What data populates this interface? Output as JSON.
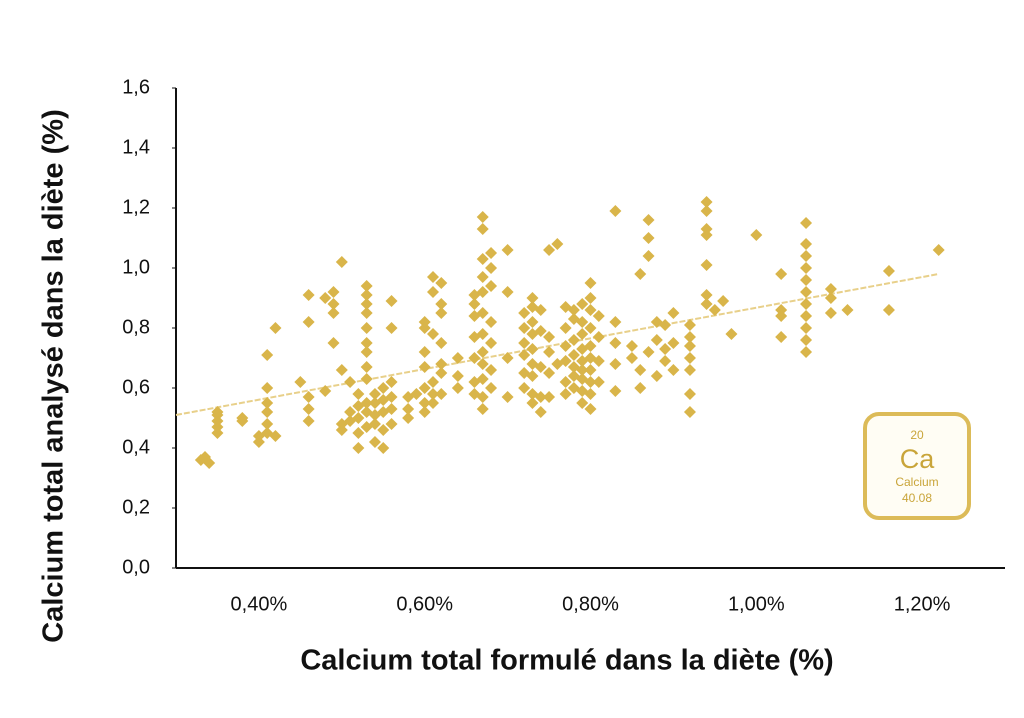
{
  "chart_data": {
    "type": "scatter",
    "x_label": "Calcium total formulé dans la diète (%)",
    "y_label": "Calcium total analysé dans la diète (%)",
    "color": "#d9b54a",
    "xlim": [
      0.3,
      1.3
    ],
    "ylim": [
      0,
      1.6
    ],
    "xticks": [
      {
        "value": 0.4,
        "label": "0,40%"
      },
      {
        "value": 0.6,
        "label": "0,60%"
      },
      {
        "value": 0.8,
        "label": "0,80%"
      },
      {
        "value": 1.0,
        "label": "1,00%"
      },
      {
        "value": 1.2,
        "label": "1,20%"
      }
    ],
    "yticks": [
      {
        "value": 0,
        "label": "0,0"
      },
      {
        "value": 0.2,
        "label": "0,2"
      },
      {
        "value": 0.4,
        "label": "0,4"
      },
      {
        "value": 0.6,
        "label": "0,6"
      },
      {
        "value": 0.8,
        "label": "0,8"
      },
      {
        "value": 1.0,
        "label": "1,0"
      },
      {
        "value": 1.2,
        "label": "1,2"
      },
      {
        "value": 1.4,
        "label": "1,4"
      },
      {
        "value": 1.6,
        "label": "1,6"
      }
    ],
    "trendline": {
      "color": "#e8d08a",
      "x": [
        0.3,
        1.22
      ],
      "y": [
        0.51,
        0.98
      ]
    },
    "x": [
      0.33,
      0.34,
      0.335,
      0.35,
      0.35,
      0.35,
      0.35,
      0.35,
      0.38,
      0.38,
      0.4,
      0.4,
      0.41,
      0.41,
      0.41,
      0.41,
      0.41,
      0.41,
      0.42,
      0.42,
      0.45,
      0.46,
      0.46,
      0.46,
      0.46,
      0.46,
      0.48,
      0.48,
      0.49,
      0.49,
      0.49,
      0.49,
      0.5,
      0.5,
      0.5,
      0.5,
      0.51,
      0.51,
      0.51,
      0.52,
      0.52,
      0.52,
      0.52,
      0.52,
      0.53,
      0.53,
      0.53,
      0.53,
      0.53,
      0.53,
      0.53,
      0.53,
      0.53,
      0.53,
      0.53,
      0.53,
      0.54,
      0.54,
      0.54,
      0.54,
      0.54,
      0.55,
      0.55,
      0.55,
      0.55,
      0.55,
      0.56,
      0.56,
      0.56,
      0.56,
      0.56,
      0.56,
      0.58,
      0.58,
      0.58,
      0.59,
      0.6,
      0.6,
      0.6,
      0.6,
      0.6,
      0.6,
      0.6,
      0.61,
      0.61,
      0.61,
      0.61,
      0.61,
      0.61,
      0.62,
      0.62,
      0.62,
      0.62,
      0.62,
      0.62,
      0.62,
      0.64,
      0.64,
      0.64,
      0.66,
      0.66,
      0.66,
      0.66,
      0.66,
      0.66,
      0.66,
      0.67,
      0.67,
      0.67,
      0.67,
      0.67,
      0.67,
      0.67,
      0.67,
      0.67,
      0.67,
      0.67,
      0.67,
      0.68,
      0.68,
      0.68,
      0.68,
      0.68,
      0.68,
      0.68,
      0.7,
      0.7,
      0.7,
      0.7,
      0.72,
      0.72,
      0.72,
      0.72,
      0.72,
      0.72,
      0.73,
      0.73,
      0.73,
      0.73,
      0.73,
      0.73,
      0.73,
      0.73,
      0.73,
      0.74,
      0.74,
      0.74,
      0.74,
      0.74,
      0.75,
      0.75,
      0.75,
      0.75,
      0.75,
      0.76,
      0.76,
      0.77,
      0.77,
      0.77,
      0.77,
      0.77,
      0.77,
      0.78,
      0.78,
      0.78,
      0.78,
      0.78,
      0.78,
      0.78,
      0.79,
      0.79,
      0.79,
      0.79,
      0.79,
      0.79,
      0.79,
      0.79,
      0.79,
      0.8,
      0.8,
      0.8,
      0.8,
      0.8,
      0.8,
      0.8,
      0.8,
      0.8,
      0.8,
      0.81,
      0.81,
      0.81,
      0.81,
      0.83,
      0.83,
      0.83,
      0.83,
      0.83,
      0.85,
      0.85,
      0.86,
      0.86,
      0.86,
      0.87,
      0.87,
      0.87,
      0.87,
      0.88,
      0.88,
      0.88,
      0.89,
      0.89,
      0.89,
      0.9,
      0.9,
      0.9,
      0.92,
      0.92,
      0.92,
      0.92,
      0.92,
      0.92,
      0.92,
      0.94,
      0.94,
      0.94,
      0.94,
      0.94,
      0.94,
      0.94,
      0.95,
      0.96,
      0.97,
      1.0,
      1.03,
      1.03,
      1.03,
      1.03,
      1.06,
      1.06,
      1.06,
      1.06,
      1.06,
      1.06,
      1.06,
      1.06,
      1.06,
      1.06,
      1.06,
      1.09,
      1.09,
      1.09,
      1.11,
      1.16,
      1.16,
      1.22
    ],
    "values": [
      0.36,
      0.35,
      0.37,
      0.45,
      0.47,
      0.49,
      0.51,
      0.52,
      0.49,
      0.5,
      0.42,
      0.44,
      0.45,
      0.48,
      0.52,
      0.55,
      0.6,
      0.71,
      0.44,
      0.8,
      0.62,
      0.49,
      0.53,
      0.57,
      0.82,
      0.91,
      0.59,
      0.9,
      0.75,
      0.85,
      0.88,
      0.92,
      0.46,
      0.48,
      0.66,
      1.02,
      0.49,
      0.52,
      0.62,
      0.4,
      0.45,
      0.5,
      0.54,
      0.58,
      0.47,
      0.52,
      0.55,
      0.63,
      0.67,
      0.72,
      0.75,
      0.8,
      0.85,
      0.88,
      0.91,
      0.94,
      0.42,
      0.48,
      0.51,
      0.55,
      0.58,
      0.4,
      0.46,
      0.52,
      0.56,
      0.6,
      0.48,
      0.53,
      0.57,
      0.62,
      0.8,
      0.89,
      0.5,
      0.53,
      0.57,
      0.58,
      0.52,
      0.55,
      0.6,
      0.67,
      0.72,
      0.8,
      0.82,
      0.55,
      0.58,
      0.62,
      0.78,
      0.92,
      0.97,
      0.58,
      0.65,
      0.68,
      0.75,
      0.85,
      0.88,
      0.95,
      0.6,
      0.64,
      0.7,
      0.58,
      0.62,
      0.7,
      0.77,
      0.84,
      0.88,
      0.91,
      0.53,
      0.57,
      0.63,
      0.68,
      0.72,
      0.78,
      0.85,
      0.92,
      0.97,
      1.03,
      1.13,
      1.17,
      0.6,
      0.66,
      0.75,
      0.82,
      0.94,
      1.0,
      1.05,
      0.57,
      0.7,
      0.92,
      1.06,
      0.6,
      0.65,
      0.71,
      0.75,
      0.8,
      0.85,
      0.55,
      0.58,
      0.64,
      0.68,
      0.73,
      0.78,
      0.82,
      0.87,
      0.9,
      0.52,
      0.57,
      0.67,
      0.79,
      0.86,
      0.57,
      0.65,
      0.72,
      0.77,
      1.06,
      0.68,
      1.08,
      0.58,
      0.62,
      0.69,
      0.74,
      0.8,
      0.87,
      0.6,
      0.64,
      0.67,
      0.71,
      0.76,
      0.83,
      0.86,
      0.55,
      0.59,
      0.63,
      0.66,
      0.69,
      0.73,
      0.78,
      0.82,
      0.88,
      0.53,
      0.58,
      0.62,
      0.66,
      0.7,
      0.74,
      0.8,
      0.86,
      0.9,
      0.95,
      0.62,
      0.69,
      0.77,
      0.84,
      0.59,
      0.68,
      0.75,
      0.82,
      1.19,
      0.7,
      0.74,
      0.6,
      0.66,
      0.98,
      0.72,
      1.04,
      1.1,
      1.16,
      0.64,
      0.76,
      0.82,
      0.69,
      0.73,
      0.81,
      0.66,
      0.75,
      0.85,
      0.52,
      0.58,
      0.66,
      0.7,
      0.74,
      0.77,
      0.81,
      0.88,
      0.91,
      1.01,
      1.11,
      1.13,
      1.19,
      1.22,
      0.86,
      0.89,
      0.78,
      1.11,
      0.77,
      0.84,
      0.86,
      0.98,
      0.72,
      0.76,
      0.8,
      0.84,
      0.88,
      0.92,
      0.96,
      1.0,
      1.04,
      1.08,
      1.15,
      0.85,
      0.9,
      0.93,
      0.86,
      0.86,
      0.99,
      1.06
    ],
    "badge": {
      "number": "20",
      "symbol": "Ca",
      "name": "Calcium",
      "mass": "40.08"
    }
  }
}
